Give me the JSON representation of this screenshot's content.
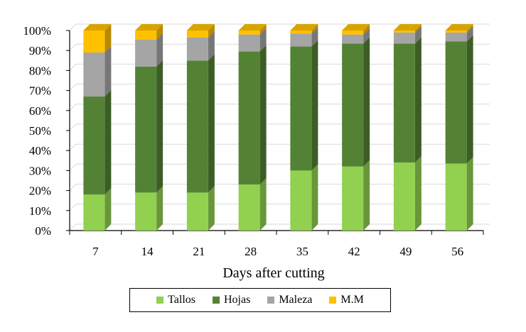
{
  "chart_data": {
    "type": "bar",
    "stacked": true,
    "percent": true,
    "categories": [
      "7",
      "14",
      "21",
      "28",
      "35",
      "42",
      "49",
      "56"
    ],
    "series": [
      {
        "name": "Tallos",
        "color": "#92d050",
        "values": [
          18,
          19,
          19,
          23,
          30,
          32,
          34,
          33.5
        ]
      },
      {
        "name": "Hojas",
        "color": "#548235",
        "values": [
          49,
          63,
          66,
          66.5,
          62,
          61.5,
          59.5,
          61
        ]
      },
      {
        "name": "Maleza",
        "color": "#a5a5a5",
        "values": [
          22,
          13.5,
          11.5,
          8.5,
          6.5,
          4.5,
          5.5,
          4.5
        ]
      },
      {
        "name": "M.M",
        "color": "#ffc000",
        "values": [
          11,
          4.5,
          3.5,
          2,
          1.5,
          2,
          1,
          1
        ]
      }
    ],
    "xlabel": "Days after cutting",
    "ylabel": "",
    "ylim": [
      0,
      100
    ],
    "yticks": [
      "0%",
      "10%",
      "20%",
      "30%",
      "40%",
      "50%",
      "60%",
      "70%",
      "80%",
      "90%",
      "100%"
    ],
    "grid": true,
    "legend_position": "bottom"
  }
}
